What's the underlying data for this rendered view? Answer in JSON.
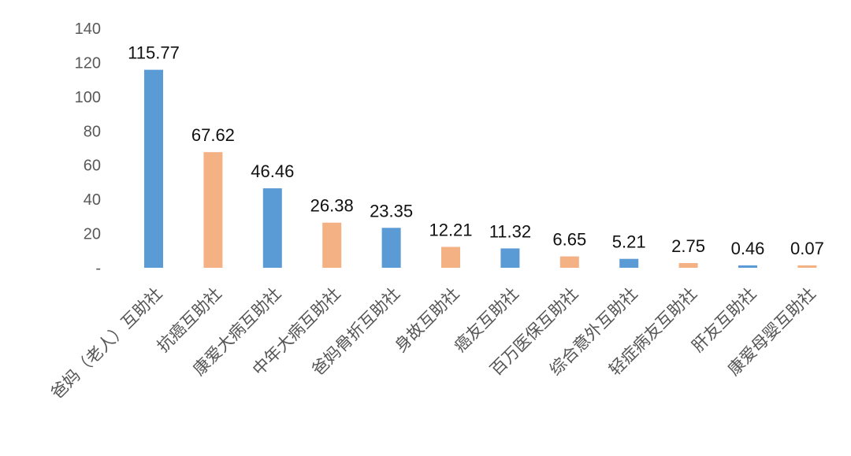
{
  "chart_data": {
    "type": "bar",
    "categories": [
      "爸妈（老人）互助社",
      "抗癌互助社",
      "康爱大病互助社",
      "中年大病互助社",
      "爸妈骨折互助社",
      "身故互助社",
      "癌友互助社",
      "百万医保互助社",
      "综合意外互助社",
      "轻症病友互助社",
      "肝友互助社",
      "康爱母婴互助社"
    ],
    "values": [
      115.77,
      67.62,
      46.46,
      26.38,
      23.35,
      12.21,
      11.32,
      6.65,
      5.21,
      2.75,
      0.46,
      0.07
    ],
    "data_labels": [
      "115.77",
      "67.62",
      "46.46",
      "26.38",
      "23.35",
      "12.21",
      "11.32",
      "6.65",
      "5.21",
      "2.75",
      "0.46",
      "0.07"
    ],
    "bar_colors": [
      "#5b9bd5",
      "#f4b183",
      "#5b9bd5",
      "#f4b183",
      "#5b9bd5",
      "#f4b183",
      "#5b9bd5",
      "#f4b183",
      "#5b9bd5",
      "#f4b183",
      "#5b9bd5",
      "#f4b183"
    ],
    "y_ticks": [
      0,
      20,
      40,
      60,
      80,
      100,
      120,
      140
    ],
    "y_tick_labels": [
      "-",
      "20",
      "40",
      "60",
      "80",
      "100",
      "120",
      "140"
    ],
    "ylim": [
      0,
      140
    ],
    "title": "",
    "xlabel": "",
    "ylabel": "",
    "grid": false,
    "legend": "none"
  }
}
